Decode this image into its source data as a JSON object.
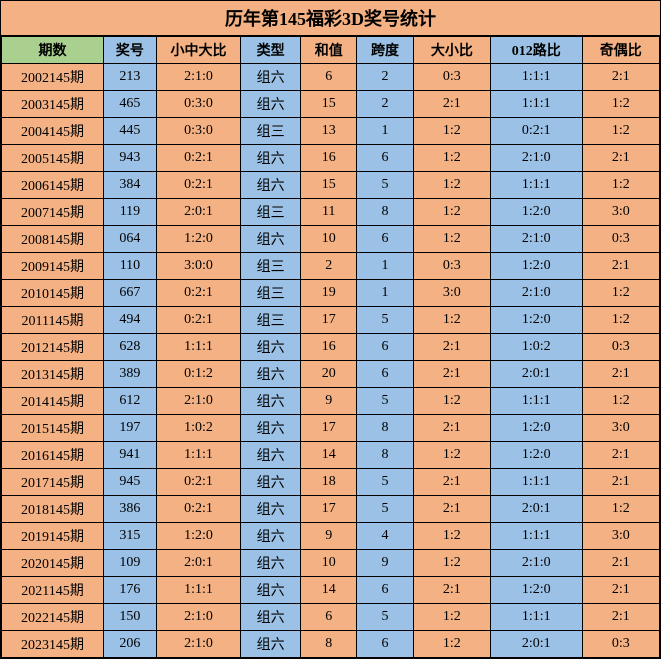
{
  "title": "历年第145福彩3D奖号统计",
  "colors": {
    "orange": "#f4b183",
    "blue": "#9bc2e6",
    "green": "#a9d08e"
  },
  "columns": [
    {
      "label": "期数",
      "width_class": "col0"
    },
    {
      "label": "奖号",
      "width_class": "col1"
    },
    {
      "label": "小中大比",
      "width_class": "col2"
    },
    {
      "label": "类型",
      "width_class": "col3"
    },
    {
      "label": "和值",
      "width_class": "col4"
    },
    {
      "label": "跨度",
      "width_class": "col5"
    },
    {
      "label": "大小比",
      "width_class": "col6"
    },
    {
      "label": "012路比",
      "width_class": "col7"
    },
    {
      "label": "奇偶比",
      "width_class": "col8"
    }
  ],
  "header_colors": [
    "green",
    "blue",
    "orange",
    "blue",
    "orange",
    "blue",
    "orange",
    "blue",
    "orange"
  ],
  "rows": [
    {
      "cells": [
        "2002145期",
        "213",
        "2:1:0",
        "组六",
        "6",
        "2",
        "0:3",
        "1:1:1",
        "2:1"
      ],
      "colors": [
        "orange",
        "blue",
        "orange",
        "blue",
        "orange",
        "blue",
        "orange",
        "blue",
        "orange"
      ]
    },
    {
      "cells": [
        "2003145期",
        "465",
        "0:3:0",
        "组六",
        "15",
        "2",
        "2:1",
        "1:1:1",
        "1:2"
      ],
      "colors": [
        "orange",
        "blue",
        "orange",
        "blue",
        "orange",
        "blue",
        "orange",
        "blue",
        "orange"
      ]
    },
    {
      "cells": [
        "2004145期",
        "445",
        "0:3:0",
        "组三",
        "13",
        "1",
        "1:2",
        "0:2:1",
        "1:2"
      ],
      "colors": [
        "orange",
        "blue",
        "orange",
        "blue",
        "orange",
        "blue",
        "orange",
        "blue",
        "orange"
      ]
    },
    {
      "cells": [
        "2005145期",
        "943",
        "0:2:1",
        "组六",
        "16",
        "6",
        "1:2",
        "2:1:0",
        "2:1"
      ],
      "colors": [
        "orange",
        "blue",
        "orange",
        "blue",
        "orange",
        "blue",
        "orange",
        "blue",
        "orange"
      ]
    },
    {
      "cells": [
        "2006145期",
        "384",
        "0:2:1",
        "组六",
        "15",
        "5",
        "1:2",
        "1:1:1",
        "1:2"
      ],
      "colors": [
        "orange",
        "blue",
        "orange",
        "blue",
        "orange",
        "blue",
        "orange",
        "blue",
        "orange"
      ]
    },
    {
      "cells": [
        "2007145期",
        "119",
        "2:0:1",
        "组三",
        "11",
        "8",
        "1:2",
        "1:2:0",
        "3:0"
      ],
      "colors": [
        "orange",
        "blue",
        "orange",
        "blue",
        "orange",
        "blue",
        "orange",
        "blue",
        "orange"
      ]
    },
    {
      "cells": [
        "2008145期",
        "064",
        "1:2:0",
        "组六",
        "10",
        "6",
        "1:2",
        "2:1:0",
        "0:3"
      ],
      "colors": [
        "orange",
        "blue",
        "orange",
        "blue",
        "orange",
        "blue",
        "orange",
        "blue",
        "orange"
      ]
    },
    {
      "cells": [
        "2009145期",
        "110",
        "3:0:0",
        "组三",
        "2",
        "1",
        "0:3",
        "1:2:0",
        "2:1"
      ],
      "colors": [
        "orange",
        "blue",
        "orange",
        "blue",
        "orange",
        "blue",
        "orange",
        "blue",
        "orange"
      ]
    },
    {
      "cells": [
        "2010145期",
        "667",
        "0:2:1",
        "组三",
        "19",
        "1",
        "3:0",
        "2:1:0",
        "1:2"
      ],
      "colors": [
        "orange",
        "blue",
        "orange",
        "blue",
        "orange",
        "blue",
        "orange",
        "blue",
        "orange"
      ]
    },
    {
      "cells": [
        "2011145期",
        "494",
        "0:2:1",
        "组三",
        "17",
        "5",
        "1:2",
        "1:2:0",
        "1:2"
      ],
      "colors": [
        "orange",
        "blue",
        "orange",
        "blue",
        "orange",
        "blue",
        "orange",
        "blue",
        "orange"
      ]
    },
    {
      "cells": [
        "2012145期",
        "628",
        "1:1:1",
        "组六",
        "16",
        "6",
        "2:1",
        "1:0:2",
        "0:3"
      ],
      "colors": [
        "orange",
        "blue",
        "orange",
        "blue",
        "orange",
        "blue",
        "orange",
        "blue",
        "orange"
      ]
    },
    {
      "cells": [
        "2013145期",
        "389",
        "0:1:2",
        "组六",
        "20",
        "6",
        "2:1",
        "2:0:1",
        "2:1"
      ],
      "colors": [
        "orange",
        "blue",
        "orange",
        "blue",
        "orange",
        "blue",
        "orange",
        "blue",
        "orange"
      ]
    },
    {
      "cells": [
        "2014145期",
        "612",
        "2:1:0",
        "组六",
        "9",
        "5",
        "1:2",
        "1:1:1",
        "1:2"
      ],
      "colors": [
        "orange",
        "blue",
        "orange",
        "blue",
        "orange",
        "blue",
        "orange",
        "blue",
        "orange"
      ]
    },
    {
      "cells": [
        "2015145期",
        "197",
        "1:0:2",
        "组六",
        "17",
        "8",
        "2:1",
        "1:2:0",
        "3:0"
      ],
      "colors": [
        "orange",
        "blue",
        "orange",
        "blue",
        "orange",
        "blue",
        "orange",
        "blue",
        "orange"
      ]
    },
    {
      "cells": [
        "2016145期",
        "941",
        "1:1:1",
        "组六",
        "14",
        "8",
        "1:2",
        "1:2:0",
        "2:1"
      ],
      "colors": [
        "orange",
        "blue",
        "orange",
        "blue",
        "orange",
        "blue",
        "orange",
        "blue",
        "orange"
      ]
    },
    {
      "cells": [
        "2017145期",
        "945",
        "0:2:1",
        "组六",
        "18",
        "5",
        "2:1",
        "1:1:1",
        "2:1"
      ],
      "colors": [
        "orange",
        "blue",
        "orange",
        "blue",
        "orange",
        "blue",
        "orange",
        "blue",
        "orange"
      ]
    },
    {
      "cells": [
        "2018145期",
        "386",
        "0:2:1",
        "组六",
        "17",
        "5",
        "2:1",
        "2:0:1",
        "1:2"
      ],
      "colors": [
        "orange",
        "blue",
        "orange",
        "blue",
        "orange",
        "blue",
        "orange",
        "blue",
        "orange"
      ]
    },
    {
      "cells": [
        "2019145期",
        "315",
        "1:2:0",
        "组六",
        "9",
        "4",
        "1:2",
        "1:1:1",
        "3:0"
      ],
      "colors": [
        "orange",
        "blue",
        "orange",
        "blue",
        "orange",
        "blue",
        "orange",
        "blue",
        "orange"
      ]
    },
    {
      "cells": [
        "2020145期",
        "109",
        "2:0:1",
        "组六",
        "10",
        "9",
        "1:2",
        "2:1:0",
        "2:1"
      ],
      "colors": [
        "orange",
        "blue",
        "orange",
        "blue",
        "orange",
        "blue",
        "orange",
        "blue",
        "orange"
      ]
    },
    {
      "cells": [
        "2021145期",
        "176",
        "1:1:1",
        "组六",
        "14",
        "6",
        "2:1",
        "1:2:0",
        "2:1"
      ],
      "colors": [
        "orange",
        "blue",
        "orange",
        "blue",
        "orange",
        "blue",
        "orange",
        "blue",
        "orange"
      ]
    },
    {
      "cells": [
        "2022145期",
        "150",
        "2:1:0",
        "组六",
        "6",
        "5",
        "1:2",
        "1:1:1",
        "2:1"
      ],
      "colors": [
        "orange",
        "blue",
        "orange",
        "blue",
        "orange",
        "blue",
        "orange",
        "blue",
        "orange"
      ]
    },
    {
      "cells": [
        "2023145期",
        "206",
        "2:1:0",
        "组六",
        "8",
        "6",
        "1:2",
        "2:0:1",
        "0:3"
      ],
      "colors": [
        "orange",
        "blue",
        "orange",
        "blue",
        "orange",
        "blue",
        "orange",
        "blue",
        "orange"
      ]
    }
  ]
}
